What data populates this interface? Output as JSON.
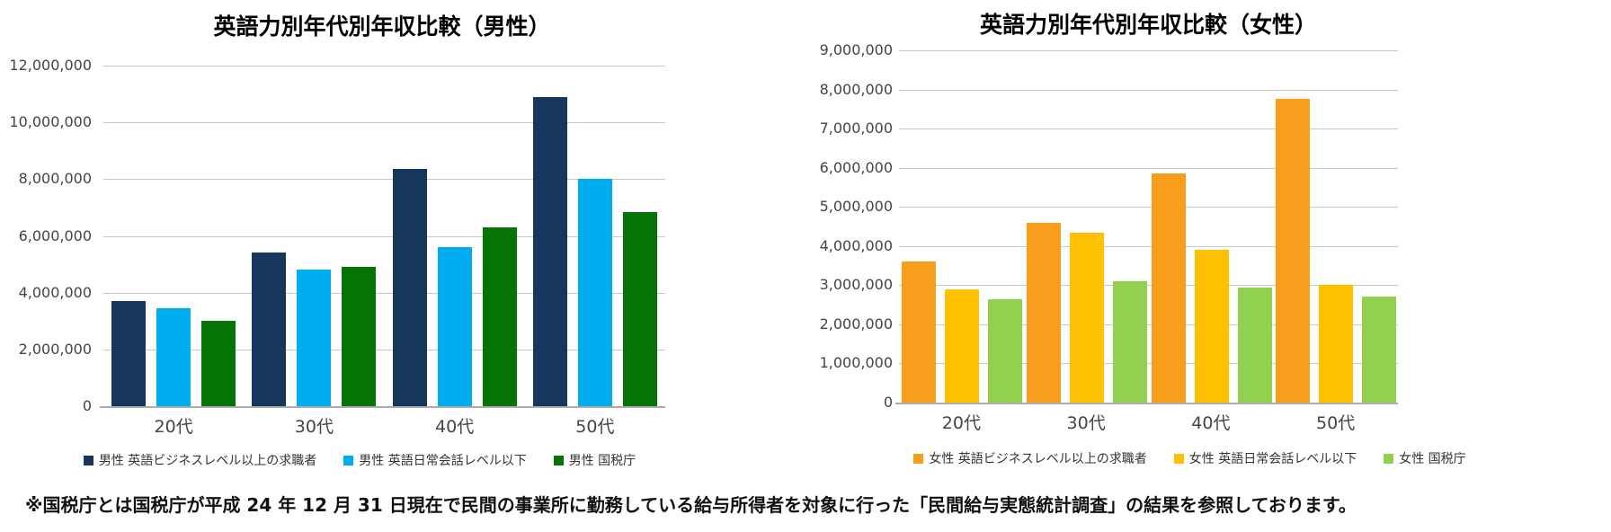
{
  "chart_data": [
    {
      "type": "bar",
      "title": "英語力別年代別年収比較（男性）",
      "categories": [
        "20代",
        "30代",
        "40代",
        "50代"
      ],
      "series": [
        {
          "name": "男性 英語ビジネスレベル以上の求職者",
          "values": [
            3700000,
            5400000,
            8350000,
            10900000
          ]
        },
        {
          "name": "男性 英語日常会話レベル以下",
          "values": [
            3450000,
            4800000,
            5600000,
            8000000
          ]
        },
        {
          "name": "男性 国税庁",
          "values": [
            3000000,
            4900000,
            6300000,
            6850000
          ]
        }
      ],
      "colors": [
        "#16365c",
        "#00aeef",
        "#067306"
      ],
      "ylim": [
        0,
        12000000
      ],
      "ystep": 2000000,
      "y_ticks": [
        "12,000,000",
        "10,000,000",
        "8,000,000",
        "6,000,000",
        "4,000,000",
        "2,000,000",
        "0"
      ],
      "xlabel": "",
      "ylabel": "",
      "grid": true,
      "legend_position": "bottom"
    },
    {
      "type": "bar",
      "title": "英語力別年代別年収比較（女性）",
      "categories": [
        "20代",
        "30代",
        "40代",
        "50代"
      ],
      "series": [
        {
          "name": "女性 英語ビジネスレベル以上の求職者",
          "values": [
            3600000,
            4600000,
            5850000,
            7750000
          ]
        },
        {
          "name": "女性 英語日常会話レベル以下",
          "values": [
            2900000,
            4350000,
            3900000,
            3000000
          ]
        },
        {
          "name": "女性 国税庁",
          "values": [
            2650000,
            3100000,
            2950000,
            2700000
          ]
        }
      ],
      "colors": [
        "#f99d1c",
        "#ffc000",
        "#92d050"
      ],
      "ylim": [
        0,
        9000000
      ],
      "ystep": 1000000,
      "y_ticks": [
        "9,000,000",
        "8,000,000",
        "7,000,000",
        "6,000,000",
        "5,000,000",
        "4,000,000",
        "3,000,000",
        "2,000,000",
        "1,000,000",
        "0"
      ],
      "xlabel": "",
      "ylabel": "",
      "grid": true,
      "legend_position": "bottom"
    }
  ],
  "footnote": "※国税庁とは国税庁が平成 24 年 12 月 31 日現在で民間の事業所に勤務している給与所得者を対象に行った「民間給与実態統計調査」の結果を参照しております。"
}
